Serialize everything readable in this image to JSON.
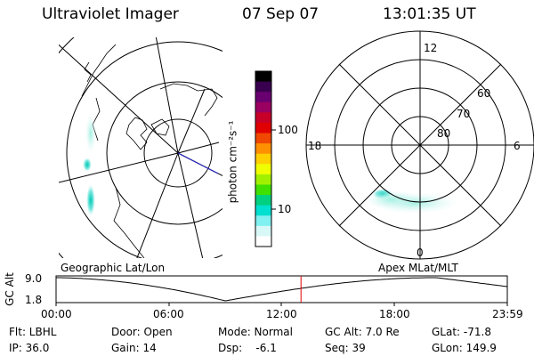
{
  "header": {
    "title": "Ultraviolet Imager",
    "date": "07 Sep 07",
    "time": "13:01:35 UT"
  },
  "colorbar": {
    "unit_label": "photon cm⁻²s⁻¹",
    "ticks": [
      "100",
      "10"
    ],
    "colors": [
      "#000000",
      "#3a0050",
      "#6a0070",
      "#9a0060",
      "#c80028",
      "#e00000",
      "#f04800",
      "#ff9000",
      "#ffd000",
      "#f0ff00",
      "#a0f000",
      "#40e000",
      "#00d080",
      "#00e0d0",
      "#80f0f0",
      "#d8f8f8",
      "#ffffff"
    ]
  },
  "polar_plot": {
    "labels": {
      "top": "12",
      "left": "18",
      "right": "6",
      "bottom": "0",
      "ring_60": "60",
      "ring_70": "70",
      "ring_80": "80"
    }
  },
  "panel_labels": {
    "left": "Geographic Lat/Lon",
    "right": "Apex MLat/MLT"
  },
  "altitude_plot": {
    "axis_title": "GC Alt",
    "y_ticks": [
      "9.0",
      "1.8"
    ],
    "x_ticks": [
      "00:00",
      "06:00",
      "12:00",
      "18:00",
      "23:59"
    ],
    "marker_time": "13:01",
    "marker_color": "#e00000"
  },
  "info": {
    "flt": "Flt: LBHL",
    "ip": "IP: 36.0",
    "door": "Door: Open",
    "gain": "Gain: 14",
    "mode": "Mode: Normal",
    "dsp": "Dsp:    -6.1",
    "gcalt": "GC Alt: 7.0 Re",
    "seq": "Seq: 39",
    "glat": "GLat: -71.8",
    "glon": "GLon: 149.9"
  }
}
